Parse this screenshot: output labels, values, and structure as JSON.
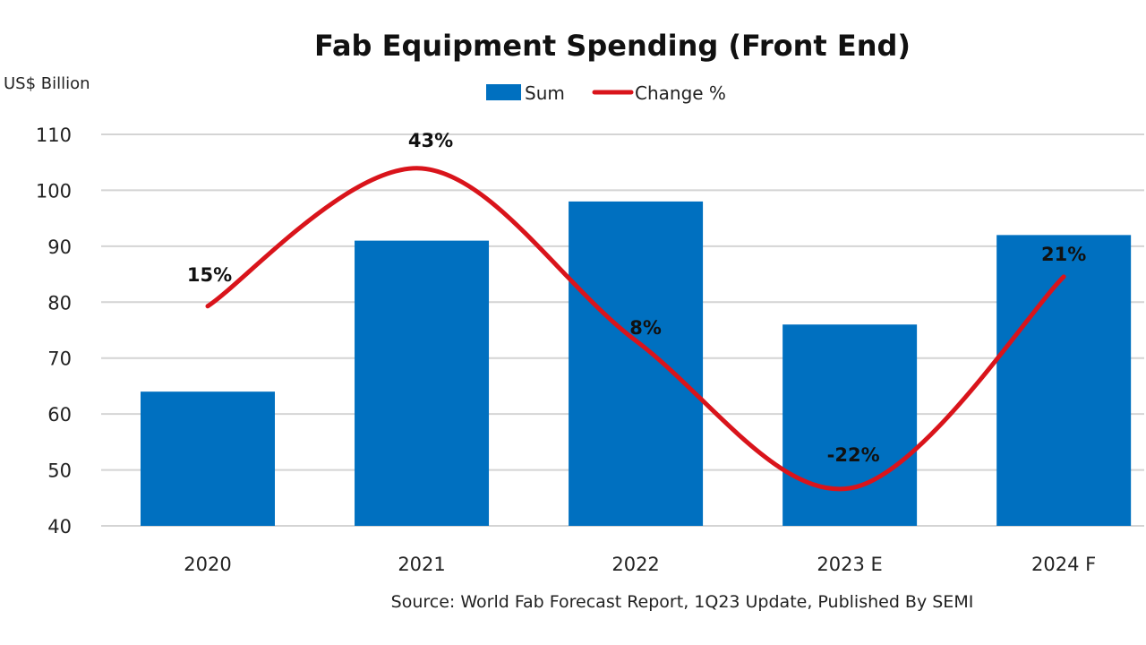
{
  "chart_data": {
    "type": "bar",
    "title": "Fab Equipment Spending (Front End)",
    "ylabel": "US$ Billion",
    "xlabel": "",
    "categories": [
      "2020",
      "2021",
      "2022",
      "2023 E",
      "2024 F"
    ],
    "ylim": [
      40,
      110
    ],
    "yticks": [
      40,
      50,
      60,
      70,
      80,
      90,
      100,
      110
    ],
    "grid": true,
    "legend_position": "top-center",
    "series": [
      {
        "name": "Sum",
        "type": "bar",
        "color": "#0070C0",
        "values": [
          64,
          91,
          98,
          76,
          92
        ]
      },
      {
        "name": "Change %",
        "type": "line",
        "axis": "secondary-hidden",
        "smooth": true,
        "color": "#D9141B",
        "values": [
          15,
          43,
          8,
          -22,
          21
        ],
        "labels": [
          "15%",
          "43%",
          "8%",
          "-22%",
          "21%"
        ]
      }
    ],
    "source": "Source: World Fab Forecast Report, 1Q23 Update, Published By SEMI"
  }
}
